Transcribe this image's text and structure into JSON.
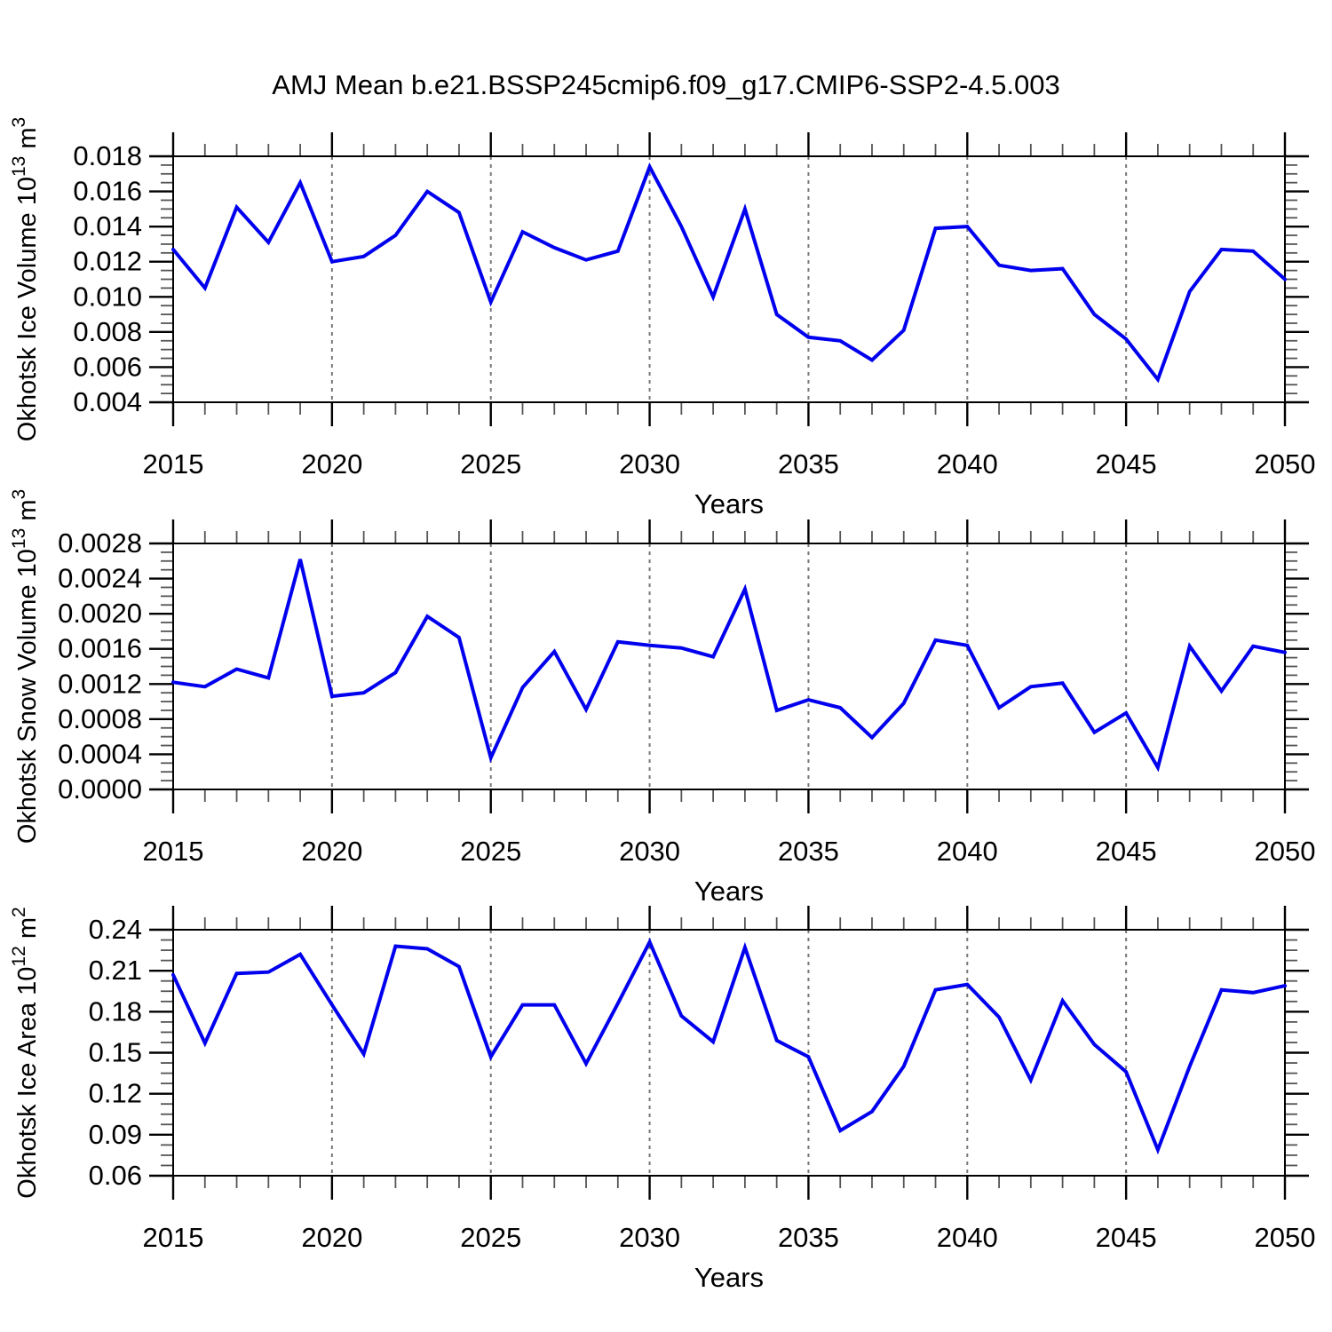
{
  "title": "AMJ Mean b.e21.BSSP245cmip6.f09_g17.CMIP6-SSP2-4.5.003",
  "xlabel": "Years",
  "x_ticks": [
    "2015",
    "2020",
    "2025",
    "2030",
    "2035",
    "2040",
    "2045",
    "2050"
  ],
  "years": [
    2015,
    2016,
    2017,
    2018,
    2019,
    2020,
    2021,
    2022,
    2023,
    2024,
    2025,
    2026,
    2027,
    2028,
    2029,
    2030,
    2031,
    2032,
    2033,
    2034,
    2035,
    2036,
    2037,
    2038,
    2039,
    2040,
    2041,
    2042,
    2043,
    2044,
    2045,
    2046,
    2047,
    2048,
    2049,
    2050
  ],
  "colors": {
    "line": "#0000ee",
    "grid": "#777777",
    "axis": "#000000",
    "minor_tick": "#555555"
  },
  "chart_data": [
    {
      "id": "ice-volume",
      "type": "line",
      "ylabel": {
        "prefix": "Okhotsk Ice Volume 10",
        "sup1": "13",
        "mid": " m",
        "sup2": "3"
      },
      "xlabel": "Years",
      "ylim": [
        0.004,
        0.018
      ],
      "ytick_labels": [
        "0.004",
        "0.006",
        "0.008",
        "0.010",
        "0.012",
        "0.014",
        "0.016",
        "0.018"
      ],
      "ytick_step": 0.002,
      "grid_years": [
        2020,
        2025,
        2030,
        2035,
        2040,
        2045
      ],
      "values": [
        0.0127,
        0.0105,
        0.0151,
        0.0131,
        0.0165,
        0.012,
        0.0123,
        0.0135,
        0.016,
        0.0148,
        0.0097,
        0.0137,
        0.0128,
        0.0121,
        0.0126,
        0.0174,
        0.014,
        0.01,
        0.015,
        0.009,
        0.0077,
        0.0075,
        0.0064,
        0.0081,
        0.0139,
        0.014,
        0.0118,
        0.0115,
        0.0116,
        0.009,
        0.0076,
        0.0053,
        0.0103,
        0.0127,
        0.0126,
        0.011
      ]
    },
    {
      "id": "snow-volume",
      "type": "line",
      "ylabel": {
        "prefix": "Okhotsk Snow Volume 10",
        "sup1": "13",
        "mid": " m",
        "sup2": "3"
      },
      "xlabel": "Years",
      "ylim": [
        0.0,
        0.0028
      ],
      "ytick_labels": [
        "0.0000",
        "0.0004",
        "0.0008",
        "0.0012",
        "0.0016",
        "0.0020",
        "0.0024",
        "0.0028"
      ],
      "ytick_step": 0.0004,
      "grid_years": [
        2020,
        2025,
        2030,
        2035,
        2040,
        2045
      ],
      "values": [
        0.00122,
        0.00117,
        0.00137,
        0.00127,
        0.00262,
        0.00106,
        0.0011,
        0.00133,
        0.00197,
        0.00173,
        0.00036,
        0.00116,
        0.00157,
        0.00091,
        0.00168,
        0.00164,
        0.00161,
        0.00151,
        0.00228,
        0.0009,
        0.00102,
        0.00093,
        0.00059,
        0.00098,
        0.0017,
        0.00164,
        0.00093,
        0.00117,
        0.00121,
        0.00065,
        0.00087,
        0.00025,
        0.00163,
        0.00112,
        0.00163,
        0.00156
      ]
    },
    {
      "id": "ice-area",
      "type": "line",
      "ylabel": {
        "prefix": "Okhotsk Ice Area 10",
        "sup1": "12",
        "mid": " m",
        "sup2": "2"
      },
      "xlabel": "Years",
      "ylim": [
        0.06,
        0.24
      ],
      "ytick_labels": [
        "0.06",
        "0.09",
        "0.12",
        "0.15",
        "0.18",
        "0.21",
        "0.24"
      ],
      "ytick_step": 0.03,
      "grid_years": [
        2020,
        2025,
        2030,
        2035,
        2040,
        2045
      ],
      "values": [
        0.207,
        0.157,
        0.208,
        0.209,
        0.222,
        0.185,
        0.149,
        0.228,
        0.226,
        0.213,
        0.147,
        0.185,
        0.185,
        0.142,
        0.186,
        0.231,
        0.177,
        0.158,
        0.227,
        0.159,
        0.147,
        0.093,
        0.107,
        0.14,
        0.196,
        0.2,
        0.176,
        0.13,
        0.188,
        0.156,
        0.136,
        0.079,
        0.14,
        0.196,
        0.194,
        0.199
      ]
    }
  ]
}
